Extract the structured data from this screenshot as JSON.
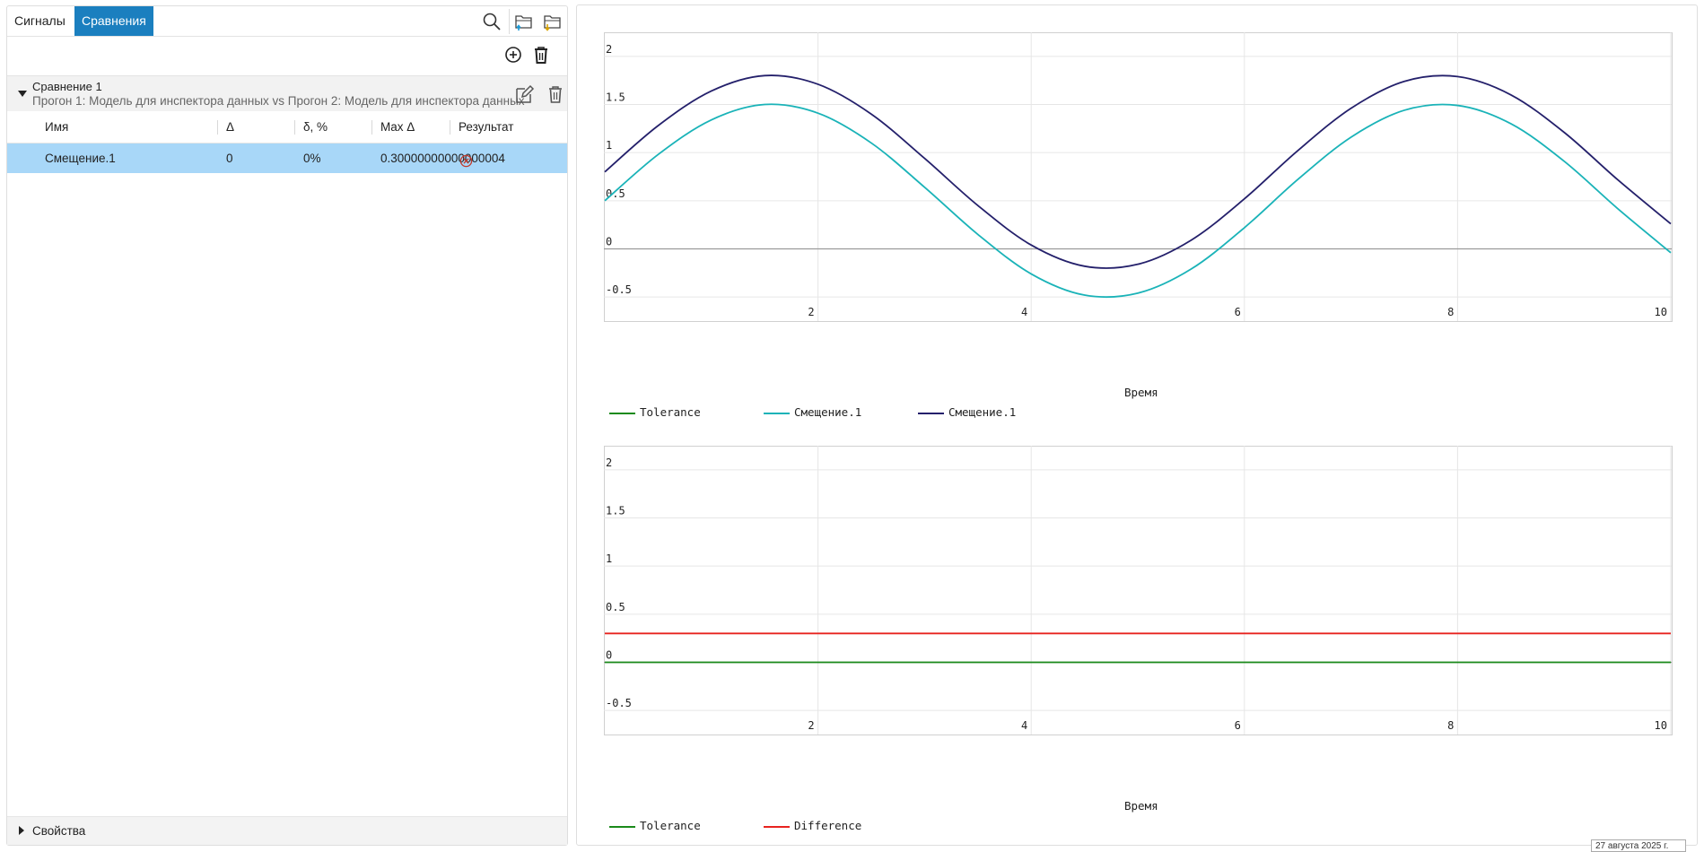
{
  "tabs": [
    {
      "label": "Сигналы",
      "active": false
    },
    {
      "label": "Сравнения",
      "active": true
    }
  ],
  "toolbar_icons": [
    "search-icon",
    "open-folder-upload-icon",
    "open-folder-download-icon"
  ],
  "actions": [
    "add-icon",
    "trash-icon"
  ],
  "comparison": {
    "title": "Сравнение 1",
    "subtitle": "Прогон 1: Модель для инспектора данных vs Прогон 2: Модель для инспектора данных"
  },
  "columns": [
    "Имя",
    "Δ",
    "δ, %",
    "Max Δ",
    "Результат"
  ],
  "rows": [
    {
      "name": "Смещение.1",
      "delta": "0",
      "delta_pct": "0%",
      "max_delta": "0.30000000000000004",
      "result": "fail",
      "selected": true
    }
  ],
  "properties_label": "Свойства",
  "colors": {
    "accent": "#1b7fbf",
    "selected_row": "#a8d7f8",
    "fail": "#c0392b"
  },
  "chart_data": [
    {
      "type": "line",
      "xlabel": "Время",
      "xlim": [
        0,
        10
      ],
      "ylim": [
        -0.75,
        2.25
      ],
      "xticks": [
        "2",
        "4",
        "6",
        "8",
        "10"
      ],
      "yticks": [
        "2",
        "1.5",
        "1",
        "0.5",
        "0",
        "-0.5"
      ],
      "legend_position": "bottom-left",
      "grid": true,
      "series": [
        {
          "name": "Tolerance",
          "color": "#1a8a1a",
          "x": [],
          "y": []
        },
        {
          "name": "Смещение.1",
          "color": "#1ab3b8",
          "x": [
            0,
            0.5,
            1,
            1.5,
            2,
            2.5,
            3,
            3.5,
            4,
            4.5,
            5,
            5.5,
            6,
            6.5,
            7,
            7.5,
            8,
            8.5,
            9,
            9.5,
            10
          ],
          "y": [
            0.5,
            0.98,
            1.34,
            1.5,
            1.41,
            1.1,
            0.64,
            0.15,
            -0.26,
            -0.48,
            -0.46,
            -0.21,
            0.22,
            0.72,
            1.16,
            1.44,
            1.49,
            1.3,
            0.91,
            0.42,
            -0.04
          ]
        },
        {
          "name": "Смещение.1",
          "color": "#24206b",
          "x": [
            0,
            0.5,
            1,
            1.5,
            2,
            2.5,
            3,
            3.5,
            4,
            4.5,
            5,
            5.5,
            6,
            6.5,
            7,
            7.5,
            8,
            8.5,
            9,
            9.5,
            10
          ],
          "y": [
            0.8,
            1.28,
            1.64,
            1.8,
            1.71,
            1.4,
            0.94,
            0.45,
            0.04,
            -0.18,
            -0.16,
            0.09,
            0.52,
            1.02,
            1.46,
            1.74,
            1.79,
            1.6,
            1.21,
            0.72,
            0.26
          ]
        }
      ]
    },
    {
      "type": "line",
      "xlabel": "Время",
      "xlim": [
        0,
        10
      ],
      "ylim": [
        -0.75,
        2.25
      ],
      "xticks": [
        "2",
        "4",
        "6",
        "8",
        "10"
      ],
      "yticks": [
        "2",
        "1.5",
        "1",
        "0.5",
        "0",
        "-0.5"
      ],
      "legend_position": "bottom-left",
      "grid": true,
      "series": [
        {
          "name": "Tolerance",
          "color": "#1a8a1a",
          "x": [
            0,
            10
          ],
          "y": [
            0,
            0
          ]
        },
        {
          "name": "Difference",
          "color": "#e8231f",
          "x": [
            0,
            10
          ],
          "y": [
            0.3,
            0.3
          ]
        }
      ]
    }
  ],
  "date_tag": "27 августа 2025 г."
}
